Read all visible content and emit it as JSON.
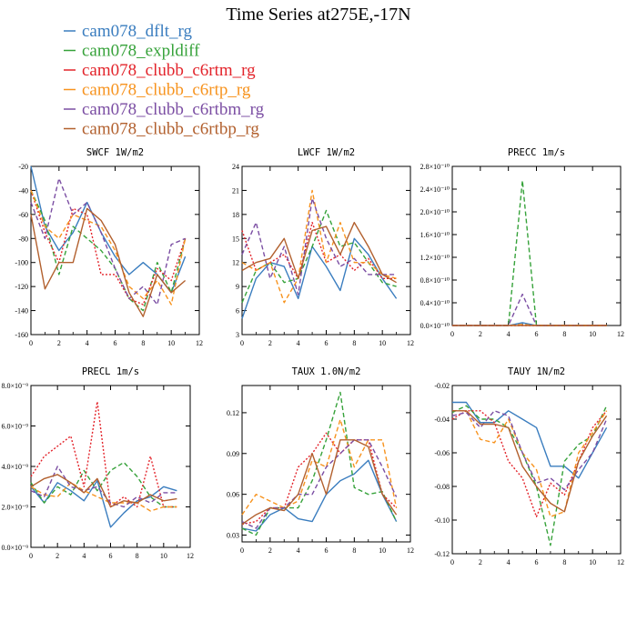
{
  "title": "Time Series at275E,-17N",
  "colors": {
    "cam078_dflt_rg": "#3a7dbf",
    "cam078_expldiff": "#36a23a",
    "cam078_clubb_c6rtm_rg": "#e3242b",
    "cam078_clubb_c6rtp_rg": "#f7931e",
    "cam078_clubb_c6rtbm_rg": "#7b4ea3",
    "cam078_clubb_c6rtbp_rg": "#b2602e"
  },
  "legend": [
    {
      "name": "cam078_dflt_rg",
      "dash": "solid"
    },
    {
      "name": "cam078_expldiff",
      "dash": "dash"
    },
    {
      "name": "cam078_clubb_c6rtm_rg",
      "dash": "dot"
    },
    {
      "name": "cam078_clubb_c6rtp_rg",
      "dash": "dash"
    },
    {
      "name": "cam078_clubb_c6rtbm_rg",
      "dash": "dash"
    },
    {
      "name": "cam078_clubb_c6rtbp_rg",
      "dash": "solid"
    }
  ],
  "chart_data": [
    {
      "type": "line",
      "title": "SWCF   1W/m2",
      "xlim": [
        0,
        12
      ],
      "ylim": [
        -160,
        -20
      ],
      "xticks": [
        0,
        2,
        4,
        6,
        8,
        10,
        12
      ],
      "yticks": [
        -160,
        -140,
        -120,
        -100,
        -80,
        -60,
        -40,
        -20
      ],
      "ytick_labels": [
        "-160",
        "-140",
        "-120",
        "-100",
        "-80",
        "-60",
        "-40",
        "-20"
      ],
      "x": [
        0,
        1,
        2,
        3,
        4,
        5,
        6,
        7,
        8,
        9,
        10,
        11
      ],
      "series": [
        {
          "name": "cam078_dflt_rg",
          "values": [
            -20,
            -70,
            -90,
            -75,
            -50,
            -75,
            -95,
            -110,
            -100,
            -110,
            -125,
            -95
          ]
        },
        {
          "name": "cam078_expldiff",
          "values": [
            -40,
            -65,
            -110,
            -70,
            -80,
            -90,
            -105,
            -130,
            -140,
            -100,
            -125,
            -80
          ]
        },
        {
          "name": "cam078_clubb_c6rtm_rg",
          "values": [
            -40,
            -75,
            -100,
            -55,
            -60,
            -110,
            -110,
            -130,
            -135,
            -105,
            -115,
            -80
          ]
        },
        {
          "name": "cam078_clubb_c6rtp_rg",
          "values": [
            -40,
            -70,
            -80,
            -60,
            -65,
            -70,
            -90,
            -120,
            -130,
            -115,
            -135,
            -80
          ]
        },
        {
          "name": "cam078_clubb_c6rtbm_rg",
          "values": [
            -50,
            -80,
            -30,
            -60,
            -50,
            -75,
            -105,
            -130,
            -120,
            -135,
            -85,
            -80
          ]
        },
        {
          "name": "cam078_clubb_c6rtbp_rg",
          "values": [
            -60,
            -122,
            -100,
            -100,
            -55,
            -65,
            -85,
            -125,
            -145,
            -110,
            -125,
            -115
          ]
        }
      ]
    },
    {
      "type": "line",
      "title": "LWCF   1W/m2",
      "xlim": [
        0,
        12
      ],
      "ylim": [
        3,
        24
      ],
      "xticks": [
        0,
        2,
        4,
        6,
        8,
        10,
        12
      ],
      "yticks": [
        3,
        6,
        9,
        12,
        15,
        18,
        21,
        24
      ],
      "ytick_labels": [
        "3",
        "6",
        "9",
        "12",
        "15",
        "18",
        "21",
        "24"
      ],
      "x": [
        0,
        1,
        2,
        3,
        4,
        5,
        6,
        7,
        8,
        9,
        10,
        11
      ],
      "series": [
        {
          "name": "cam078_dflt_rg",
          "values": [
            5,
            10,
            12,
            11.5,
            7.5,
            14,
            11.5,
            8.5,
            15,
            13,
            10,
            7.5
          ]
        },
        {
          "name": "cam078_expldiff",
          "values": [
            7,
            11,
            12,
            9.5,
            10,
            14,
            18.5,
            14,
            14.5,
            12,
            9.5,
            9
          ]
        },
        {
          "name": "cam078_clubb_c6rtm_rg",
          "values": [
            16,
            11,
            12,
            13,
            10,
            17,
            12,
            13,
            11,
            12.5,
            10,
            10
          ]
        },
        {
          "name": "cam078_clubb_c6rtp_rg",
          "values": [
            12,
            11,
            12,
            7,
            10,
            21,
            12,
            17,
            12,
            12,
            10.5,
            10
          ]
        },
        {
          "name": "cam078_clubb_c6rtbm_rg",
          "values": [
            13,
            17,
            10,
            14,
            8,
            20,
            15,
            11.5,
            12.5,
            10.5,
            10.5,
            10.5
          ]
        },
        {
          "name": "cam078_clubb_c6rtbp_rg",
          "values": [
            11,
            12,
            12.5,
            15,
            10,
            16,
            16.5,
            13,
            17,
            14,
            10.5,
            9.5
          ]
        }
      ]
    },
    {
      "type": "line",
      "title": "PRECC   1m/s",
      "xlim": [
        0,
        12
      ],
      "ylim": [
        0,
        2.8
      ],
      "xticks": [
        0,
        2,
        4,
        6,
        8,
        10,
        12
      ],
      "yticks": [
        0,
        0.4,
        0.8,
        1.2,
        1.6,
        2.0,
        2.4,
        2.8
      ],
      "ytick_labels": [
        "0.0×10⁻¹⁰",
        "0.4×10⁻¹⁰",
        "0.8×10⁻¹⁰",
        "1.2×10⁻¹⁰",
        "1.6×10⁻¹⁰",
        "2.0×10⁻¹⁰",
        "2.4×10⁻¹⁰",
        "2.8×10⁻¹⁰"
      ],
      "x": [
        0,
        1,
        2,
        3,
        4,
        5,
        6,
        7,
        8,
        9,
        10,
        11
      ],
      "series": [
        {
          "name": "cam078_dflt_rg",
          "values": [
            0,
            0,
            0,
            0,
            0,
            0.05,
            0,
            0,
            0,
            0,
            0,
            0
          ]
        },
        {
          "name": "cam078_expldiff",
          "values": [
            0,
            0,
            0,
            0,
            0,
            2.55,
            0,
            0,
            0,
            0,
            0,
            0
          ]
        },
        {
          "name": "cam078_clubb_c6rtm_rg",
          "values": [
            0,
            0,
            0,
            0,
            0,
            0,
            0,
            0,
            0,
            0,
            0,
            0
          ]
        },
        {
          "name": "cam078_clubb_c6rtp_rg",
          "values": [
            0,
            0,
            0,
            0,
            0,
            0.02,
            0,
            0,
            0,
            0,
            0,
            0
          ]
        },
        {
          "name": "cam078_clubb_c6rtbm_rg",
          "values": [
            0,
            0,
            0,
            0,
            0,
            0.55,
            0,
            0,
            0,
            0,
            0,
            0
          ]
        },
        {
          "name": "cam078_clubb_c6rtbp_rg",
          "values": [
            0,
            0,
            0,
            0,
            0,
            0,
            0,
            0,
            0,
            0,
            0,
            0
          ]
        }
      ]
    },
    {
      "type": "line",
      "title": "PRECL   1m/s",
      "xlim": [
        0,
        12
      ],
      "ylim": [
        0,
        8
      ],
      "xticks": [
        0,
        2,
        4,
        6,
        8,
        10,
        12
      ],
      "yticks": [
        0,
        2,
        4,
        6,
        8
      ],
      "ytick_labels": [
        "0.0×10⁻⁹",
        "2.0×10⁻⁹",
        "4.0×10⁻⁹",
        "6.0×10⁻⁹",
        "8.0×10⁻⁹"
      ],
      "x": [
        0,
        1,
        2,
        3,
        4,
        5,
        6,
        7,
        8,
        9,
        10,
        11
      ],
      "series": [
        {
          "name": "cam078_dflt_rg",
          "values": [
            3,
            2.2,
            3.2,
            2.8,
            2.3,
            3.3,
            1,
            1.7,
            2.3,
            2.5,
            3,
            2.8
          ]
        },
        {
          "name": "cam078_expldiff",
          "values": [
            3.2,
            2.2,
            3,
            2.6,
            3.8,
            2.8,
            3.8,
            4.2,
            3.5,
            2.5,
            2,
            2
          ]
        },
        {
          "name": "cam078_clubb_c6rtm_rg",
          "values": [
            3.5,
            4.5,
            5,
            5.5,
            3,
            7.2,
            2,
            2.5,
            2,
            4.5,
            2,
            2
          ]
        },
        {
          "name": "cam078_clubb_c6rtp_rg",
          "values": [
            3,
            2.6,
            2.5,
            3.2,
            2.8,
            2.5,
            2.2,
            2.2,
            2.2,
            1.8,
            2,
            2
          ]
        },
        {
          "name": "cam078_clubb_c6rtbm_rg",
          "values": [
            2.8,
            2.5,
            4,
            3,
            2.8,
            3,
            2.2,
            2,
            2.5,
            2.2,
            2.7,
            2.7
          ]
        },
        {
          "name": "cam078_clubb_c6rtbp_rg",
          "values": [
            3,
            3.4,
            3.6,
            3.2,
            2.7,
            3.4,
            2,
            2.3,
            2.2,
            2.6,
            2.3,
            2.4
          ]
        }
      ]
    },
    {
      "type": "line",
      "title": "TAUX   1.0N/m2",
      "xlim": [
        0,
        12
      ],
      "ylim": [
        0.025,
        0.14
      ],
      "xticks": [
        0,
        2,
        4,
        6,
        8,
        10,
        12
      ],
      "yticks": [
        0.03,
        0.06,
        0.09,
        0.12
      ],
      "ytick_labels": [
        "0.03",
        "0.06",
        "0.09",
        "0.12"
      ],
      "x": [
        0,
        1,
        2,
        3,
        4,
        5,
        6,
        7,
        8,
        9,
        10,
        11
      ],
      "series": [
        {
          "name": "cam078_dflt_rg",
          "values": [
            0.035,
            0.033,
            0.045,
            0.05,
            0.042,
            0.04,
            0.06,
            0.07,
            0.075,
            0.085,
            0.06,
            0.04
          ]
        },
        {
          "name": "cam078_expldiff",
          "values": [
            0.035,
            0.03,
            0.05,
            0.05,
            0.05,
            0.07,
            0.1,
            0.135,
            0.065,
            0.06,
            0.062,
            0.04
          ]
        },
        {
          "name": "cam078_clubb_c6rtm_rg",
          "values": [
            0.038,
            0.04,
            0.05,
            0.05,
            0.08,
            0.09,
            0.105,
            0.09,
            0.1,
            0.1,
            0.06,
            0.05
          ]
        },
        {
          "name": "cam078_clubb_c6rtp_rg",
          "values": [
            0.045,
            0.06,
            0.055,
            0.05,
            0.055,
            0.085,
            0.08,
            0.115,
            0.08,
            0.1,
            0.1,
            0.05
          ]
        },
        {
          "name": "cam078_clubb_c6rtbm_rg",
          "values": [
            0.04,
            0.035,
            0.05,
            0.05,
            0.06,
            0.06,
            0.08,
            0.09,
            0.1,
            0.1,
            0.08,
            0.058
          ]
        },
        {
          "name": "cam078_clubb_c6rtbp_rg",
          "values": [
            0.038,
            0.045,
            0.05,
            0.048,
            0.06,
            0.09,
            0.06,
            0.1,
            0.1,
            0.095,
            0.06,
            0.045
          ]
        }
      ]
    },
    {
      "type": "line",
      "title": "TAUY   1N/m2",
      "xlim": [
        0,
        12
      ],
      "ylim": [
        -0.12,
        -0.02
      ],
      "xticks": [
        0,
        2,
        4,
        6,
        8,
        10,
        12
      ],
      "yticks": [
        -0.12,
        -0.1,
        -0.08,
        -0.06,
        -0.04,
        -0.02
      ],
      "ytick_labels": [
        "-0.12",
        "-0.10",
        "-0.08",
        "-0.06",
        "-0.04",
        "-0.02"
      ],
      "x": [
        0,
        1,
        2,
        3,
        4,
        5,
        6,
        7,
        8,
        9,
        10,
        11
      ],
      "series": [
        {
          "name": "cam078_dflt_rg",
          "values": [
            -0.03,
            -0.03,
            -0.042,
            -0.042,
            -0.035,
            -0.04,
            -0.045,
            -0.068,
            -0.068,
            -0.075,
            -0.06,
            -0.045
          ]
        },
        {
          "name": "cam078_expldiff",
          "values": [
            -0.036,
            -0.032,
            -0.04,
            -0.04,
            -0.045,
            -0.06,
            -0.08,
            -0.115,
            -0.065,
            -0.055,
            -0.05,
            -0.032
          ]
        },
        {
          "name": "cam078_clubb_c6rtm_rg",
          "values": [
            -0.04,
            -0.035,
            -0.035,
            -0.042,
            -0.065,
            -0.075,
            -0.098,
            -0.078,
            -0.085,
            -0.065,
            -0.045,
            -0.035
          ]
        },
        {
          "name": "cam078_clubb_c6rtp_rg",
          "values": [
            -0.035,
            -0.035,
            -0.052,
            -0.054,
            -0.04,
            -0.06,
            -0.07,
            -0.098,
            -0.095,
            -0.06,
            -0.048,
            -0.035
          ]
        },
        {
          "name": "cam078_clubb_c6rtbm_rg",
          "values": [
            -0.038,
            -0.036,
            -0.045,
            -0.035,
            -0.038,
            -0.06,
            -0.078,
            -0.075,
            -0.082,
            -0.07,
            -0.06,
            -0.04
          ]
        },
        {
          "name": "cam078_clubb_c6rtbp_rg",
          "values": [
            -0.035,
            -0.035,
            -0.043,
            -0.043,
            -0.045,
            -0.068,
            -0.08,
            -0.09,
            -0.095,
            -0.065,
            -0.05,
            -0.038
          ]
        }
      ]
    }
  ]
}
